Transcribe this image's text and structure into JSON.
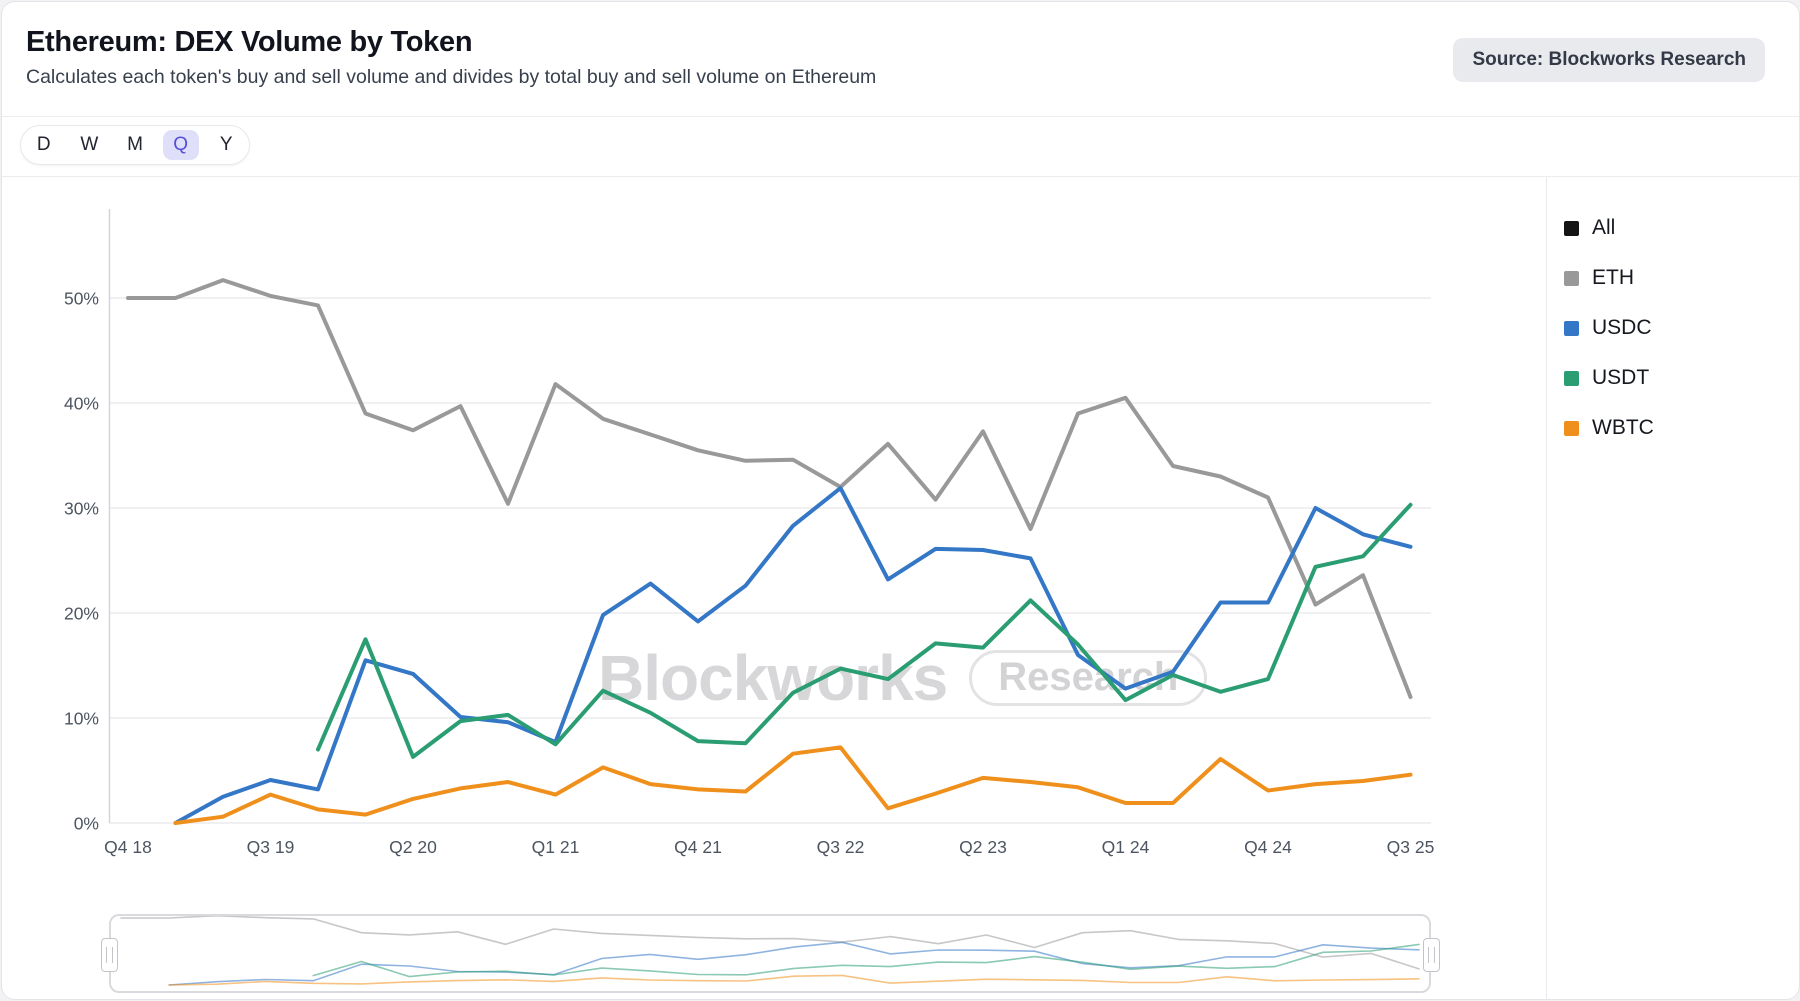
{
  "header": {
    "title": "Ethereum: DEX Volume by Token",
    "subtitle": "Calculates each token's buy and sell volume and divides by total buy and sell volume on Ethereum",
    "source_badge": "Source: Blockworks Research"
  },
  "period_selector": {
    "options": [
      "D",
      "W",
      "M",
      "Q",
      "Y"
    ],
    "selected": "Q"
  },
  "watermark": {
    "brand": "Blockworks",
    "suffix": "Research"
  },
  "legend": [
    {
      "label": "All",
      "color": "#141414"
    },
    {
      "label": "ETH",
      "color": "#999999"
    },
    {
      "label": "USDC",
      "color": "#3377c6"
    },
    {
      "label": "USDT",
      "color": "#2a9d72"
    },
    {
      "label": "WBTC",
      "color": "#f0901c"
    }
  ],
  "chart_data": {
    "type": "line",
    "title": "Ethereum: DEX Volume by Token",
    "x": [
      "Q4 18",
      "Q1 19",
      "Q2 19",
      "Q3 19",
      "Q4 19",
      "Q1 20",
      "Q2 20",
      "Q3 20",
      "Q4 20",
      "Q1 21",
      "Q2 21",
      "Q3 21",
      "Q4 21",
      "Q1 22",
      "Q2 22",
      "Q3 22",
      "Q4 22",
      "Q1 23",
      "Q2 23",
      "Q3 23",
      "Q4 23",
      "Q1 24",
      "Q2 24",
      "Q3 24",
      "Q4 24",
      "Q1 25",
      "Q2 25",
      "Q3 25"
    ],
    "x_tick_labels": [
      "Q4 18",
      "Q3 19",
      "Q2 20",
      "Q1 21",
      "Q4 21",
      "Q3 22",
      "Q2 23",
      "Q1 24",
      "Q4 24",
      "Q3 25"
    ],
    "yticks": [
      "0%",
      "10%",
      "20%",
      "30%",
      "40%",
      "50%"
    ],
    "ylim": [
      0,
      55
    ],
    "unit": "%",
    "grid": "horizontal",
    "legend_position": "right",
    "series": [
      {
        "name": "ETH",
        "color": "#999999",
        "values": [
          50.0,
          50.0,
          51.7,
          50.2,
          49.3,
          39.0,
          37.4,
          39.7,
          30.4,
          41.8,
          38.5,
          37.0,
          35.5,
          34.5,
          34.6,
          32.0,
          36.1,
          30.8,
          37.3,
          28.0,
          39.0,
          40.5,
          34.0,
          33.0,
          31.0,
          20.8,
          23.6,
          12.0
        ]
      },
      {
        "name": "USDC",
        "color": "#3377c6",
        "values": [
          null,
          0.0,
          2.5,
          4.1,
          3.2,
          15.5,
          14.2,
          10.1,
          9.6,
          7.7,
          19.8,
          22.8,
          19.2,
          22.6,
          28.3,
          31.9,
          23.2,
          26.1,
          26.0,
          25.2,
          16.0,
          12.8,
          14.4,
          21.0,
          21.0,
          30.0,
          27.5,
          26.3
        ]
      },
      {
        "name": "USDT",
        "color": "#2a9d72",
        "values": [
          null,
          null,
          null,
          null,
          7.0,
          17.5,
          6.3,
          9.7,
          10.3,
          7.5,
          12.6,
          10.5,
          7.8,
          7.6,
          12.4,
          14.7,
          13.7,
          17.1,
          16.7,
          21.2,
          17.0,
          11.7,
          14.1,
          12.5,
          13.7,
          24.4,
          25.4,
          30.3
        ]
      },
      {
        "name": "WBTC",
        "color": "#f0901c",
        "values": [
          null,
          0.0,
          0.6,
          2.7,
          1.3,
          0.8,
          2.3,
          3.3,
          3.9,
          2.7,
          5.3,
          3.7,
          3.2,
          3.0,
          6.6,
          7.2,
          1.4,
          2.8,
          4.3,
          3.9,
          3.4,
          1.9,
          1.9,
          6.1,
          3.1,
          3.7,
          4.0,
          4.6
        ]
      }
    ]
  }
}
